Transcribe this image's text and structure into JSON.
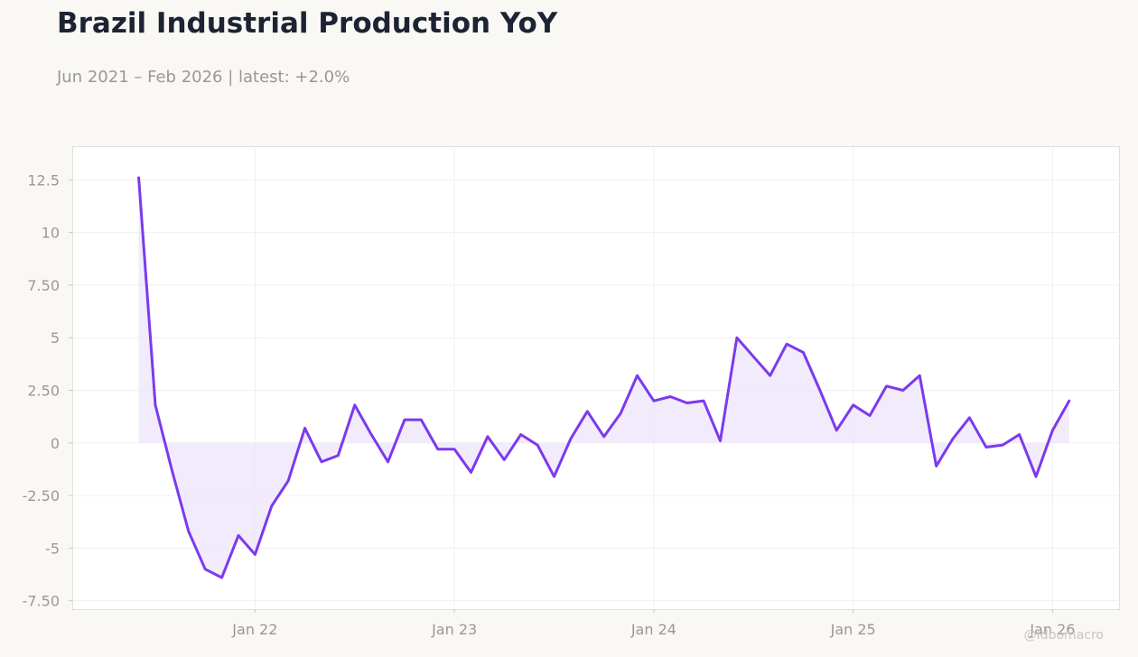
{
  "title": "Brazil Industrial Production YoY",
  "subtitle": "Jun 2021 – Feb 2026 | latest: +2.0%",
  "watermark": "@Idbomacro",
  "colors": {
    "line": "#7c3aed",
    "fill": "#ede6fb",
    "grid": "#efefef",
    "axis_text": "#9a9893",
    "plot_bg": "#ffffff",
    "page_bg": "#f9f8f5"
  },
  "chart_data": {
    "type": "area",
    "title": "Brazil Industrial Production YoY",
    "subtitle": "Jun 2021 – Feb 2026 | latest: +2.0%",
    "xlabel": "",
    "ylabel": "",
    "ylim": [
      -7.9,
      14.1
    ],
    "xlim": [
      "2021-02",
      "2026-05"
    ],
    "grid": true,
    "legend": "none",
    "yticks": [
      12.5,
      10,
      7.5,
      5,
      2.5,
      0,
      -2.5,
      -5,
      -7.5
    ],
    "ytick_labels": [
      "12.5",
      "10",
      "7.50",
      "5",
      "2.50",
      "0",
      "-2.50",
      "-5",
      "-7.50"
    ],
    "xticks": [
      "2022-01",
      "2023-01",
      "2024-01",
      "2025-01",
      "2026-01"
    ],
    "xtick_labels": [
      "Jan 22",
      "Jan 23",
      "Jan 24",
      "Jan 25",
      "Jan 26"
    ],
    "x": [
      "2021-06",
      "2021-07",
      "2021-08",
      "2021-09",
      "2021-10",
      "2021-11",
      "2021-12",
      "2022-01",
      "2022-02",
      "2022-03",
      "2022-04",
      "2022-05",
      "2022-06",
      "2022-07",
      "2022-08",
      "2022-09",
      "2022-10",
      "2022-11",
      "2022-12",
      "2023-01",
      "2023-02",
      "2023-03",
      "2023-04",
      "2023-05",
      "2023-06",
      "2023-07",
      "2023-08",
      "2023-09",
      "2023-10",
      "2023-11",
      "2023-12",
      "2024-01",
      "2024-02",
      "2024-03",
      "2024-04",
      "2024-05",
      "2024-06",
      "2024-07",
      "2024-08",
      "2024-09",
      "2024-10",
      "2024-11",
      "2024-12",
      "2025-01",
      "2025-02",
      "2025-03",
      "2025-04",
      "2025-05",
      "2025-06",
      "2025-07",
      "2025-08",
      "2025-09",
      "2025-10",
      "2025-11",
      "2025-12",
      "2026-01",
      "2026-02"
    ],
    "series": [
      {
        "values": [
          12.6,
          1.8,
          -1.3,
          -4.2,
          -6.0,
          -6.4,
          -4.4,
          -5.3,
          -3.0,
          -1.8,
          0.7,
          -0.9,
          -0.6,
          1.8,
          0.4,
          -0.9,
          1.1,
          1.1,
          -0.3,
          -0.3,
          -1.4,
          0.3,
          -0.8,
          0.4,
          -0.1,
          -1.6,
          0.2,
          1.5,
          0.3,
          1.4,
          3.2,
          2.0,
          2.2,
          1.9,
          2.0,
          0.1,
          5.0,
          4.1,
          3.2,
          4.7,
          4.3,
          2.5,
          0.6,
          1.8,
          1.3,
          2.7,
          2.5,
          3.2,
          -1.1,
          0.2,
          1.2,
          -0.2,
          -0.1,
          0.4,
          -1.6,
          0.6,
          2.0
        ]
      }
    ]
  }
}
